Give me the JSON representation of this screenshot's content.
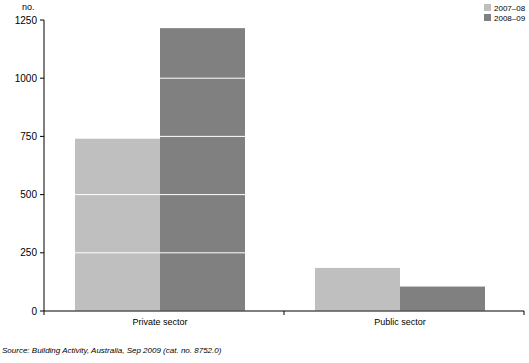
{
  "chart_data": {
    "type": "bar",
    "ylabel": "no.",
    "source": "Source: Building Activity, Australia, Sep 2009 (cat. no. 8752.0)",
    "categories": [
      "Private sector",
      "Public sector"
    ],
    "series": [
      {
        "name": "2007–08",
        "color": "#bfbfbf",
        "values": [
          740,
          185
        ]
      },
      {
        "name": "2008–09",
        "color": "#808080",
        "values": [
          1215,
          105
        ]
      }
    ],
    "ylim": [
      0,
      1250
    ],
    "yticks": [
      0,
      250,
      500,
      750,
      1000,
      1250
    ],
    "grid": true,
    "legend": "top-right"
  }
}
